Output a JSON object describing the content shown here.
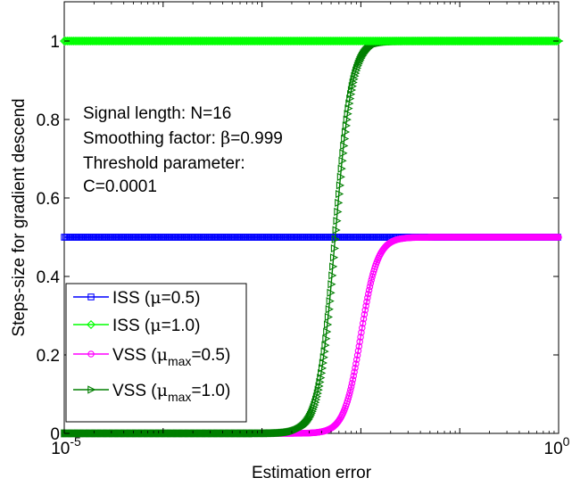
{
  "chart_data": {
    "type": "line",
    "title": "",
    "xlabel": "Estimation error",
    "ylabel": "Steps-size for gradient descend",
    "x_scale": "log",
    "xlim": [
      1e-05,
      1
    ],
    "ylim": [
      0,
      1.1
    ],
    "x_ticks": [
      {
        "value": 1e-05,
        "base": "10",
        "exp": "-5"
      },
      {
        "value": 1,
        "base": "10",
        "exp": "0"
      }
    ],
    "y_ticks": [
      {
        "value": 0,
        "label": "0"
      },
      {
        "value": 0.2,
        "label": "0.2"
      },
      {
        "value": 0.4,
        "label": "0.4"
      },
      {
        "value": 0.6,
        "label": "0.6"
      },
      {
        "value": 0.8,
        "label": "0.8"
      },
      {
        "value": 1,
        "label": "1"
      }
    ],
    "grid": false,
    "legend_position": "lower-left",
    "annotations": [
      {
        "text": "Signal length: N=16"
      },
      {
        "pre": "Smoothing factor: ",
        "greek": "β",
        "post": "=0.999"
      },
      {
        "text": "Threshold parameter:"
      },
      {
        "text": "C=0.0001"
      }
    ],
    "series": [
      {
        "legend_pre": "ISS (",
        "legend_greek": "μ",
        "legend_sub": "",
        "legend_post": "=0.5)",
        "color": "#0000ff",
        "marker": "square",
        "kind": "constant",
        "value": 0.5
      },
      {
        "legend_pre": "ISS (",
        "legend_greek": "μ",
        "legend_sub": "",
        "legend_post": "=1.0)",
        "color": "#00ff00",
        "marker": "diamond",
        "kind": "constant",
        "value": 1.0
      },
      {
        "legend_pre": "VSS (",
        "legend_greek": "μ",
        "legend_sub": "max",
        "legend_post": "=0.5)",
        "color": "#ff00ff",
        "marker": "circle",
        "kind": "sigmoid",
        "value": 0.5,
        "midpoint": 0.01,
        "steepness": 5.2
      },
      {
        "legend_pre": "VSS (",
        "legend_greek": "μ",
        "legend_sub": "max",
        "legend_post": "=1.0)",
        "color": "#007f00",
        "marker": "triangle-right",
        "kind": "sigmoid",
        "value": 1.0,
        "midpoint": 0.0055,
        "steepness": 5.2
      }
    ]
  }
}
